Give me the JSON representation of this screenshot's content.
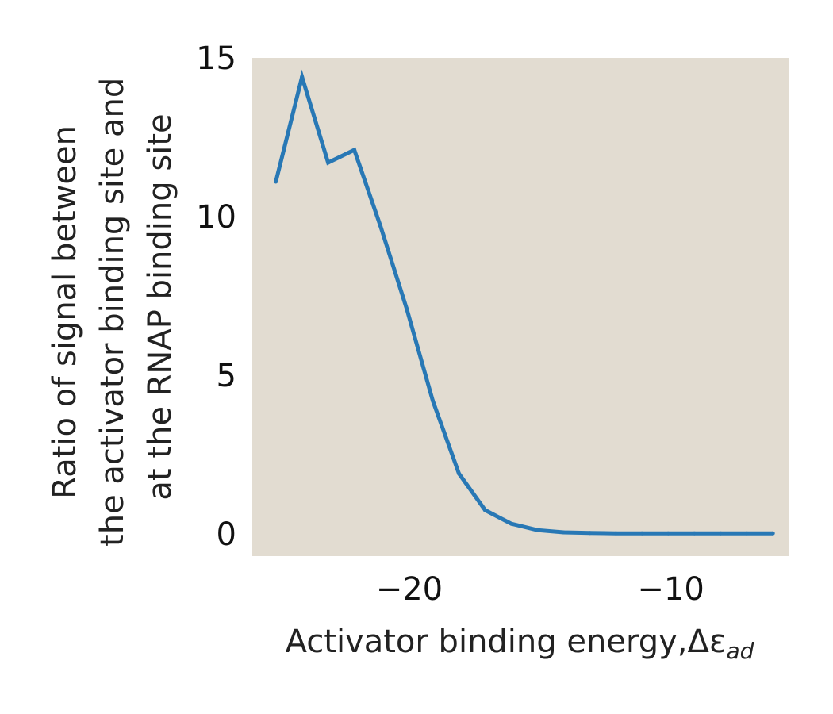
{
  "chart_data": {
    "type": "line",
    "xlabel": "Activator binding energy,Δε",
    "xlabel_subscript": "ad",
    "ylabel_lines": [
      "Ratio of signal between",
      "the activator binding site and",
      "at the RNAP binding site"
    ],
    "xlim": [
      -26,
      -5.5
    ],
    "ylim": [
      -0.7,
      15
    ],
    "xticks": [
      {
        "value": -20,
        "label": "−20"
      },
      {
        "value": -10,
        "label": "−10"
      }
    ],
    "yticks": [
      {
        "value": 0,
        "label": "0"
      },
      {
        "value": 5,
        "label": "5"
      },
      {
        "value": 10,
        "label": "10"
      },
      {
        "value": 15,
        "label": "15"
      }
    ],
    "grid": false,
    "series": [
      {
        "color": "#2878b5",
        "points": [
          [
            -25.1,
            11.1
          ],
          [
            -24.1,
            14.4
          ],
          [
            -23.1,
            11.7
          ],
          [
            -22.1,
            12.1
          ],
          [
            -21.1,
            9.7
          ],
          [
            -20.1,
            7.1
          ],
          [
            -19.1,
            4.2
          ],
          [
            -18.1,
            1.9
          ],
          [
            -17.1,
            0.75
          ],
          [
            -16.1,
            0.32
          ],
          [
            -15.1,
            0.12
          ],
          [
            -14.1,
            0.05
          ],
          [
            -13.1,
            0.03
          ],
          [
            -12.1,
            0.02
          ],
          [
            -11.1,
            0.02
          ],
          [
            -10.1,
            0.02
          ],
          [
            -9.1,
            0.02
          ],
          [
            -8.1,
            0.02
          ],
          [
            -7.1,
            0.02
          ],
          [
            -6.1,
            0.02
          ]
        ]
      }
    ]
  },
  "colors": {
    "plot_background": "#e2dcd1",
    "line": "#2878b5"
  }
}
